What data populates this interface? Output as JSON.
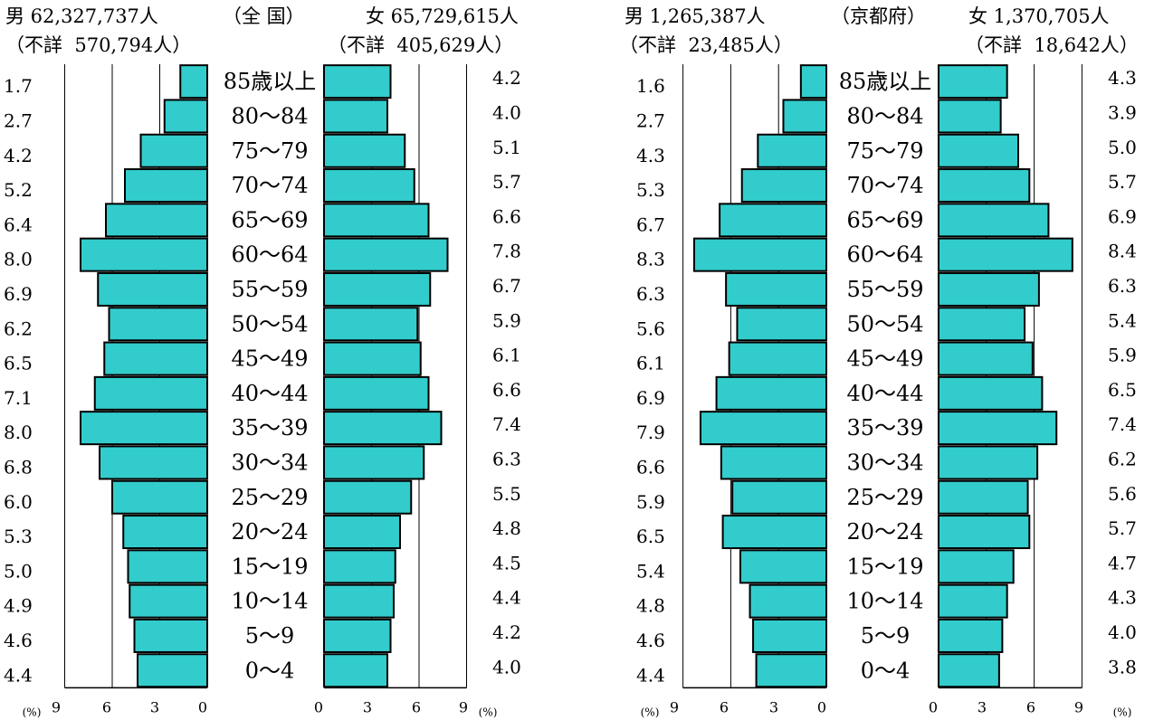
{
  "chart_data": [
    {
      "type": "bar",
      "orientation": "horizontal-population-pyramid",
      "title": "（全 国）",
      "male_header": "男 62,327,737人",
      "male_unknown": "（不詳  570,794人）",
      "female_header": "女 65,729,615人",
      "female_unknown": "（不詳  405,629人）",
      "categories": [
        "85歳以上",
        "80～84",
        "75～79",
        "70～74",
        "65～69",
        "60～64",
        "55～59",
        "50～54",
        "45～49",
        "40～44",
        "35～39",
        "30～34",
        "25～29",
        "20～24",
        "15～19",
        "10～14",
        "5～9",
        "0～4"
      ],
      "series": [
        {
          "name": "男",
          "values": [
            1.7,
            2.7,
            4.2,
            5.2,
            6.4,
            8.0,
            6.9,
            6.2,
            6.5,
            7.1,
            8.0,
            6.8,
            6.0,
            5.3,
            5.0,
            4.9,
            4.6,
            4.4
          ]
        },
        {
          "name": "女",
          "values": [
            4.2,
            4.0,
            5.1,
            5.7,
            6.6,
            7.8,
            6.7,
            5.9,
            6.1,
            6.6,
            7.4,
            6.3,
            5.5,
            4.8,
            4.5,
            4.4,
            4.2,
            4.0
          ]
        }
      ],
      "male_value_labels": [
        "1.7",
        "2.7",
        "4.2",
        "5.2",
        "6.4",
        "8.0",
        "6.9",
        "6.2",
        "6.5",
        "7.1",
        "8.0",
        "6.8",
        "6.0",
        "5.3",
        "5.0",
        "4.9",
        "4.6",
        "4.4"
      ],
      "female_value_labels": [
        "4.2",
        "4.0",
        "5.1",
        "5.7",
        "6.6",
        "7.8",
        "6.7",
        "5.9",
        "6.1",
        "6.6",
        "7.4",
        "6.3",
        "5.5",
        "4.8",
        "4.5",
        "4.4",
        "4.2",
        "4.0"
      ],
      "male_bars_display": [
        1.7,
        2.7,
        4.2,
        5.2,
        6.4,
        8.0,
        6.9,
        6.2,
        6.5,
        7.1,
        8.0,
        6.8,
        6.0,
        5.3,
        5.0,
        4.9,
        4.6,
        4.4
      ],
      "female_bars_display": [
        4.2,
        4.0,
        5.1,
        5.7,
        6.6,
        7.8,
        6.7,
        5.9,
        6.1,
        6.6,
        7.4,
        6.3,
        5.5,
        4.8,
        4.5,
        4.4,
        4.2,
        4.0
      ],
      "x_ticks": [
        "9",
        "6",
        "3",
        "0"
      ],
      "x_ticks_female": [
        "0",
        "3",
        "6",
        "9"
      ],
      "unit_label": "(%)",
      "xlim": [
        0,
        9
      ],
      "grid": true
    },
    {
      "type": "bar",
      "orientation": "horizontal-population-pyramid",
      "title": "（京都府）",
      "male_header": "男 1,265,387人",
      "male_unknown": "（不詳  23,485人）",
      "female_header": "女 1,370,705人",
      "female_unknown": "（不詳  18,642人）",
      "categories": [
        "85歳以上",
        "80～84",
        "75～79",
        "70～74",
        "65～69",
        "60～64",
        "55～59",
        "50～54",
        "45～49",
        "40～44",
        "35～39",
        "30～34",
        "25～29",
        "20～24",
        "15～19",
        "10～14",
        "5～9",
        "0～4"
      ],
      "series": [
        {
          "name": "男",
          "values": [
            1.6,
            2.7,
            4.3,
            5.3,
            6.7,
            8.3,
            6.3,
            5.6,
            6.1,
            6.9,
            7.9,
            6.6,
            5.9,
            6.5,
            5.4,
            4.8,
            4.6,
            4.4
          ]
        },
        {
          "name": "女",
          "values": [
            4.3,
            3.9,
            5.0,
            5.7,
            6.9,
            8.4,
            6.3,
            5.4,
            5.9,
            6.5,
            7.4,
            6.2,
            5.6,
            5.7,
            4.7,
            4.3,
            4.0,
            3.8
          ]
        }
      ],
      "male_value_labels": [
        "1.6",
        "2.7",
        "4.3",
        "5.3",
        "6.7",
        "8.3",
        "6.3",
        "5.6",
        "6.1",
        "6.9",
        "7.9",
        "6.6",
        "5.9",
        "6.5",
        "5.4",
        "4.8",
        "4.6",
        "4.4"
      ],
      "female_value_labels": [
        "4.3",
        "3.9",
        "5.0",
        "5.7",
        "6.9",
        "8.4",
        "6.3",
        "5.4",
        "5.9",
        "6.5",
        "7.4",
        "6.2",
        "5.6",
        "5.7",
        "4.7",
        "4.3",
        "4.0",
        "3.8"
      ],
      "male_bars_display": [
        1.6,
        2.7,
        4.3,
        5.3,
        6.7,
        8.3,
        6.3,
        5.6,
        6.1,
        6.9,
        7.9,
        6.6,
        5.9,
        6.5,
        5.4,
        4.8,
        4.6,
        4.4
      ],
      "female_bars_display": [
        4.3,
        3.9,
        5.0,
        5.7,
        6.9,
        8.4,
        6.3,
        5.4,
        5.9,
        6.5,
        7.4,
        6.2,
        5.6,
        5.7,
        4.7,
        4.3,
        4.0,
        3.8
      ],
      "x_ticks": [
        "9",
        "6",
        "3",
        "0"
      ],
      "x_ticks_female": [
        "0",
        "3",
        "6",
        "9"
      ],
      "unit_label": "(%)",
      "xlim": [
        0,
        9
      ],
      "grid": true
    }
  ],
  "colors": {
    "bar_fill": "#33CCCC",
    "bar_stroke": "#000000",
    "grid": "#000000"
  }
}
